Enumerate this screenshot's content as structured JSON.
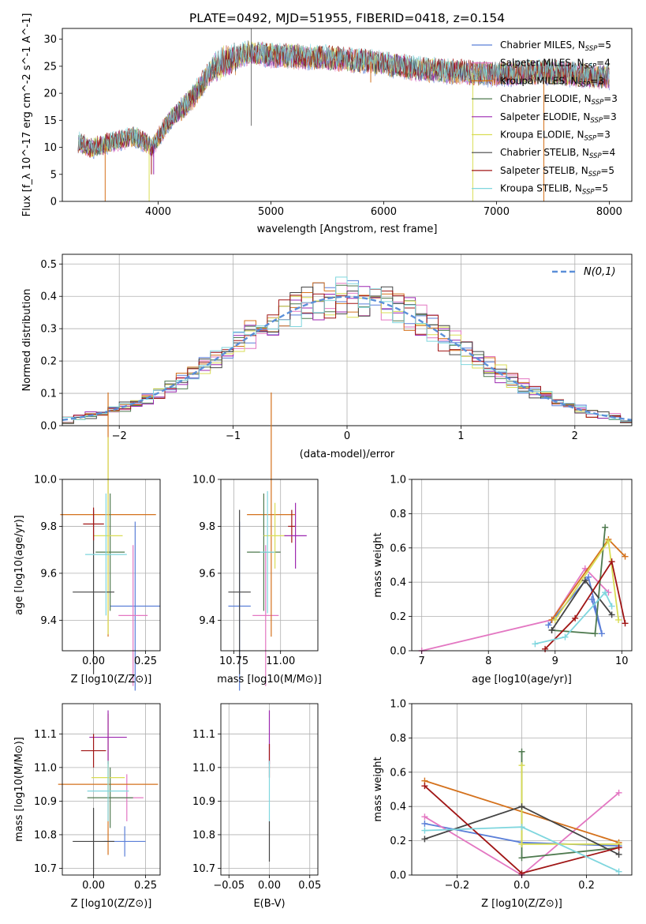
{
  "chart_data": [
    {
      "id": "spectrum",
      "type": "line",
      "title": "PLATE=0492, MJD=51955, FIBERID=0418, z=0.154",
      "xlabel": "wavelength [Angstrom, rest frame]",
      "ylabel": "Flux [f_λ 10^-17 erg cm^-2 s^-1 A^-1]",
      "xlim": [
        3150,
        8200
      ],
      "ylim": [
        0,
        32
      ],
      "xticks": [
        4000,
        5000,
        6000,
        7000,
        8000
      ],
      "yticks": [
        0,
        5,
        10,
        15,
        20,
        25,
        30
      ],
      "grid": false,
      "legend_position": "top-right",
      "continuum": [
        [
          3290,
          11
        ],
        [
          3400,
          9.8
        ],
        [
          3600,
          11
        ],
        [
          3800,
          12
        ],
        [
          3950,
          10
        ],
        [
          4100,
          15
        ],
        [
          4300,
          19
        ],
        [
          4500,
          25
        ],
        [
          4800,
          27.5
        ],
        [
          5000,
          27
        ],
        [
          5500,
          26.5
        ],
        [
          5800,
          26
        ],
        [
          6000,
          25.5
        ],
        [
          6300,
          24.5
        ],
        [
          6600,
          24
        ],
        [
          7000,
          23.5
        ],
        [
          7400,
          24
        ],
        [
          8000,
          23
        ]
      ],
      "series": [
        {
          "name": "Chabrier MILES, N_SSP=5",
          "color": "#5b7fd8"
        },
        {
          "name": "Salpeter MILES, N_SSP=4",
          "color": "#e377c2"
        },
        {
          "name": "Kroupa MILES, N_SSP=3",
          "color": "#d4711c"
        },
        {
          "name": "Chabrier ELODIE, N_SSP=3",
          "color": "#4f7a4f"
        },
        {
          "name": "Salpeter ELODIE, N_SSP=3",
          "color": "#9c27b0"
        },
        {
          "name": "Kroupa ELODIE, N_SSP=3",
          "color": "#d9dd55"
        },
        {
          "name": "Chabrier STELIB, N_SSP=4",
          "color": "#444444"
        },
        {
          "name": "Salpeter STELIB, N_SSP=5",
          "color": "#a01515"
        },
        {
          "name": "Kroupa STELIB, N_SSP=5",
          "color": "#7fd6de"
        }
      ]
    },
    {
      "id": "residuals",
      "type": "line",
      "xlabel": "(data-model)/error",
      "ylabel": "Normed distribution",
      "xlim": [
        -2.5,
        2.5
      ],
      "ylim": [
        0,
        0.53
      ],
      "xticks": [
        -2,
        -1,
        0,
        1,
        2
      ],
      "yticks": [
        0.0,
        0.1,
        0.2,
        0.3,
        0.4,
        0.5
      ],
      "grid": true,
      "legend_position": "top-right",
      "legend": "N(0,1)",
      "reference_curve": {
        "name": "N(0,1)",
        "mean": 0,
        "sigma": 1,
        "color": "#5b8fd8"
      },
      "bin_width": 0.1
    },
    {
      "id": "z-age",
      "type": "scatter",
      "xlabel": "Z [log10(Z/Z⊙)]",
      "ylabel": "age [log10(age/yr)]",
      "xlim": [
        -0.15,
        0.32
      ],
      "ylim": [
        9.27,
        10.0
      ],
      "xticks": [
        0.0,
        0.25
      ],
      "yticks": [
        9.4,
        9.6,
        9.8,
        10.0
      ],
      "points": [
        {
          "x": 0.2,
          "y": 9.46,
          "xerr": 0.12,
          "yerr": 0.36,
          "color": "#5b7fd8"
        },
        {
          "x": 0.19,
          "y": 9.42,
          "xerr": 0.07,
          "yerr": 0.3,
          "color": "#e377c2"
        },
        {
          "x": 0.07,
          "y": 9.85,
          "xerr": 0.23,
          "yerr": 0.52,
          "color": "#d4711c"
        },
        {
          "x": 0.08,
          "y": 9.69,
          "xerr": 0.07,
          "yerr": 0.25,
          "color": "#4f7a4f"
        },
        {
          "x": 0.07,
          "y": 9.76,
          "xerr": 0.07,
          "yerr": 0.42,
          "color": "#d9dd55"
        },
        {
          "x": 0.0,
          "y": 9.52,
          "xerr": 0.1,
          "yerr": 0.35,
          "color": "#444444"
        },
        {
          "x": 0.0,
          "y": 9.81,
          "xerr": 0.05,
          "yerr": 0.07,
          "color": "#a01515"
        },
        {
          "x": 0.06,
          "y": 9.68,
          "xerr": 0.1,
          "yerr": 0.26,
          "color": "#7fd6de"
        }
      ]
    },
    {
      "id": "mass-age",
      "type": "scatter",
      "xlabel": "mass [log10(M/M⊙)]",
      "ylabel": "",
      "xlim": [
        10.68,
        11.2
      ],
      "ylim": [
        9.27,
        10.0
      ],
      "xticks": [
        10.75,
        11.0
      ],
      "yticks": [
        9.4,
        9.6,
        9.8,
        10.0
      ],
      "points": [
        {
          "x": 10.78,
          "y": 9.46,
          "xerr": 0.06,
          "yerr": 0.36,
          "color": "#5b7fd8"
        },
        {
          "x": 10.92,
          "y": 9.42,
          "xerr": 0.07,
          "yerr": 0.3,
          "color": "#e377c2"
        },
        {
          "x": 10.95,
          "y": 9.85,
          "xerr": 0.13,
          "yerr": 0.52,
          "color": "#d4711c"
        },
        {
          "x": 10.91,
          "y": 9.69,
          "xerr": 0.09,
          "yerr": 0.25,
          "color": "#4f7a4f"
        },
        {
          "x": 10.97,
          "y": 9.76,
          "xerr": 0.06,
          "yerr": 0.14,
          "color": "#d9dd55"
        },
        {
          "x": 10.78,
          "y": 9.52,
          "xerr": 0.06,
          "yerr": 0.35,
          "color": "#444444"
        },
        {
          "x": 11.06,
          "y": 9.8,
          "xerr": 0.02,
          "yerr": 0.07,
          "color": "#a01515"
        },
        {
          "x": 11.08,
          "y": 9.76,
          "xerr": 0.06,
          "yerr": 0.14,
          "color": "#9c27b0"
        },
        {
          "x": 10.93,
          "y": 9.69,
          "xerr": 0.04,
          "yerr": 0.26,
          "color": "#7fd6de"
        }
      ]
    },
    {
      "id": "age-weight",
      "type": "line",
      "xlabel": "age [log10(age/yr)]",
      "ylabel": "mass weight",
      "xlim": [
        6.85,
        10.15
      ],
      "ylim": [
        0,
        1.0
      ],
      "xticks": [
        7,
        8,
        9,
        10
      ],
      "yticks": [
        0.0,
        0.2,
        0.4,
        0.6,
        0.8,
        1.0
      ],
      "grid": true,
      "series": [
        {
          "color": "#5b7fd8",
          "x": [
            8.9,
            9.5,
            9.7,
            9.55
          ],
          "y": [
            0.15,
            0.43,
            0.1,
            0.3
          ]
        },
        {
          "color": "#e377c2",
          "x": [
            7.0,
            8.95,
            9.45,
            9.8
          ],
          "y": [
            0.0,
            0.18,
            0.48,
            0.34
          ]
        },
        {
          "color": "#d4711c",
          "x": [
            8.95,
            9.8,
            10.05
          ],
          "y": [
            0.18,
            0.65,
            0.55
          ]
        },
        {
          "color": "#4f7a4f",
          "x": [
            8.95,
            9.6,
            9.75
          ],
          "y": [
            0.12,
            0.1,
            0.72
          ]
        },
        {
          "color": "#d9dd55",
          "x": [
            9.0,
            9.8,
            9.95
          ],
          "y": [
            0.18,
            0.64,
            0.18
          ]
        },
        {
          "color": "#444444",
          "x": [
            8.95,
            9.45,
            9.85
          ],
          "y": [
            0.12,
            0.41,
            0.21
          ]
        },
        {
          "color": "#a01515",
          "x": [
            8.85,
            9.3,
            9.85,
            10.05
          ],
          "y": [
            0.01,
            0.19,
            0.52,
            0.16
          ]
        },
        {
          "color": "#7fd6de",
          "x": [
            8.7,
            9.15,
            9.75,
            9.85
          ],
          "y": [
            0.04,
            0.08,
            0.34,
            0.26
          ]
        }
      ]
    },
    {
      "id": "z-mass",
      "type": "scatter",
      "xlabel": "Z [log10(Z/Z⊙)]",
      "ylabel": "mass [log10(M/M⊙)]",
      "xlim": [
        -0.15,
        0.32
      ],
      "ylim": [
        10.68,
        11.19
      ],
      "xticks": [
        0.0,
        0.25
      ],
      "yticks": [
        10.7,
        10.8,
        10.9,
        11.0,
        11.1
      ],
      "points": [
        {
          "x": 0.15,
          "y": 10.78,
          "xerr": 0.1,
          "yerr": 0.045,
          "color": "#5b7fd8"
        },
        {
          "x": 0.16,
          "y": 10.91,
          "xerr": 0.08,
          "yerr": 0.07,
          "color": "#e377c2"
        },
        {
          "x": 0.07,
          "y": 10.95,
          "xerr": 0.24,
          "yerr": 0.21,
          "color": "#d4711c"
        },
        {
          "x": 0.08,
          "y": 10.91,
          "xerr": 0.11,
          "yerr": 0.09,
          "color": "#4f7a4f"
        },
        {
          "x": 0.07,
          "y": 11.09,
          "xerr": 0.09,
          "yerr": 0.08,
          "color": "#9c27b0"
        },
        {
          "x": 0.07,
          "y": 10.97,
          "xerr": 0.08,
          "yerr": 0.05,
          "color": "#d9dd55"
        },
        {
          "x": 0.0,
          "y": 10.78,
          "xerr": 0.1,
          "yerr": 0.1,
          "color": "#444444"
        },
        {
          "x": 0.0,
          "y": 11.05,
          "xerr": 0.06,
          "yerr": 0.05,
          "color": "#a01515"
        },
        {
          "x": 0.07,
          "y": 10.93,
          "xerr": 0.1,
          "yerr": 0.09,
          "color": "#7fd6de"
        }
      ]
    },
    {
      "id": "ebv-mass",
      "type": "scatter",
      "xlabel": "E(B-V)",
      "ylabel": "",
      "xlim": [
        -0.06,
        0.06
      ],
      "ylim": [
        10.68,
        11.19
      ],
      "xticks": [
        -0.05,
        0.0,
        0.05
      ],
      "yticks": [
        10.7,
        10.8,
        10.9,
        11.0,
        11.1
      ],
      "grid": true,
      "points": [
        {
          "x": 0.0,
          "y": 11.09,
          "yerr": 0.08,
          "color": "#9c27b0"
        },
        {
          "x": 0.0,
          "y": 11.02,
          "yerr": 0.05,
          "color": "#a01515"
        },
        {
          "x": 0.0,
          "y": 10.93,
          "yerr": 0.09,
          "color": "#7fd6de"
        },
        {
          "x": 0.0,
          "y": 10.78,
          "yerr": 0.06,
          "color": "#444444"
        }
      ]
    },
    {
      "id": "z-weight",
      "type": "line",
      "xlabel": "Z [log10(Z/Z⊙)]",
      "ylabel": "mass weight",
      "xlim": [
        -0.34,
        0.34
      ],
      "ylim": [
        0,
        1.0
      ],
      "xticks": [
        -0.2,
        0.0,
        0.2
      ],
      "yticks": [
        0.0,
        0.2,
        0.4,
        0.6,
        0.8,
        1.0
      ],
      "grid": true,
      "series": [
        {
          "color": "#5b7fd8",
          "x": [
            -0.3,
            0.0,
            0.3
          ],
          "y": [
            0.3,
            0.19,
            0.17
          ]
        },
        {
          "color": "#e377c2",
          "x": [
            -0.3,
            0.0,
            0.3
          ],
          "y": [
            0.34,
            0.0,
            0.48
          ]
        },
        {
          "color": "#d4711c",
          "x": [
            -0.3,
            0.3
          ],
          "y": [
            0.55,
            0.19
          ]
        },
        {
          "color": "#4f7a4f",
          "x": [
            0.0,
            0.0,
            0.3
          ],
          "y": [
            0.72,
            0.1,
            0.16
          ]
        },
        {
          "color": "#d9dd55",
          "x": [
            0.0,
            0.0,
            0.3
          ],
          "y": [
            0.64,
            0.18,
            0.18
          ]
        },
        {
          "color": "#444444",
          "x": [
            -0.3,
            0.0,
            0.3
          ],
          "y": [
            0.21,
            0.4,
            0.12
          ]
        },
        {
          "color": "#a01515",
          "x": [
            -0.3,
            0.0,
            0.3
          ],
          "y": [
            0.52,
            0.01,
            0.16
          ]
        },
        {
          "color": "#7fd6de",
          "x": [
            -0.3,
            0.0,
            0.3
          ],
          "y": [
            0.26,
            0.28,
            0.02
          ]
        }
      ]
    }
  ]
}
